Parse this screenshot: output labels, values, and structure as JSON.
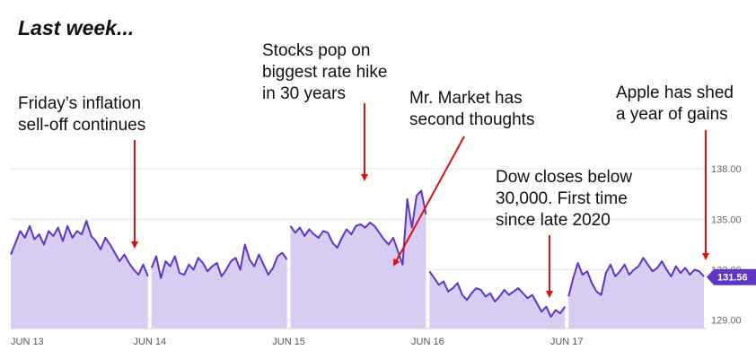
{
  "headline": "Last week...",
  "annotations": [
    {
      "text": "Friday’s inflation\nsell-off continues"
    },
    {
      "text": "Stocks pop on\nbiggest rate hike\nin 30 years"
    },
    {
      "text": "Mr. Market has\nsecond thoughts"
    },
    {
      "text": "Dow closes below\n30,000. First time\nsince late 2020"
    },
    {
      "text": "Apple has shed\na year of gains"
    }
  ],
  "colors": {
    "line": "#5f35c4",
    "fill": "#d8ccf2",
    "arrow": "#e01010",
    "price_badge": "#5f35c4",
    "grid": "#e6e6e6"
  },
  "chart_data": {
    "type": "area",
    "ylim": [
      128.5,
      139.5
    ],
    "yticks": [
      {
        "value": 138,
        "label": "138.00"
      },
      {
        "value": 135,
        "label": "135.00"
      },
      {
        "value": 132,
        "label": "132.00"
      },
      {
        "value": 129,
        "label": "129.00"
      }
    ],
    "xticks": [
      "JUN 13",
      "JUN 14",
      "JUN 15",
      "JUN 16",
      "JUN 17"
    ],
    "current_price": {
      "value": 131.56,
      "label": "131.56"
    },
    "series": [
      {
        "day": "JUN 13",
        "values": [
          132.9,
          133.6,
          134.3,
          133.9,
          134.6,
          133.8,
          134.1,
          133.5,
          134.3,
          134.0,
          134.5,
          133.7,
          134.6,
          133.9,
          134.3,
          134.1,
          134.9,
          134.0,
          133.7,
          133.2,
          133.9,
          133.5,
          133.0,
          132.5,
          132.9,
          132.4,
          132.0,
          131.7,
          132.3,
          131.6
        ]
      },
      {
        "day": "JUN 14",
        "values": [
          132.1,
          132.8,
          131.5,
          132.5,
          132.2,
          132.8,
          131.8,
          131.7,
          132.3,
          132.0,
          132.7,
          132.4,
          131.9,
          132.2,
          132.4,
          131.6,
          132.0,
          132.5,
          132.7,
          132.0,
          133.5,
          132.6,
          132.2,
          132.9,
          132.3,
          131.7,
          132.1,
          132.8,
          133.0,
          132.6
        ]
      },
      {
        "day": "JUN 15",
        "values": [
          134.6,
          134.2,
          134.5,
          134.0,
          134.4,
          134.1,
          133.9,
          134.3,
          134.2,
          133.6,
          133.3,
          133.9,
          134.4,
          134.1,
          134.6,
          134.7,
          134.5,
          134.8,
          134.6,
          134.2,
          133.8,
          133.5,
          133.9,
          133.1,
          132.3,
          136.2,
          134.5,
          136.4,
          136.7,
          135.3
        ]
      },
      {
        "day": "JUN 16",
        "values": [
          131.9,
          131.5,
          131.1,
          131.3,
          130.7,
          130.9,
          131.2,
          130.5,
          130.2,
          130.6,
          130.9,
          130.8,
          130.4,
          130.6,
          130.1,
          130.4,
          130.8,
          130.5,
          130.7,
          130.9,
          130.6,
          130.3,
          130.5,
          130.0,
          129.5,
          129.8,
          129.2,
          129.6,
          129.4,
          129.8
        ]
      },
      {
        "day": "JUN 17",
        "values": [
          130.4,
          131.5,
          132.4,
          131.7,
          131.9,
          131.2,
          130.7,
          130.5,
          131.8,
          132.3,
          131.6,
          131.9,
          132.3,
          131.7,
          132.0,
          132.2,
          132.7,
          132.3,
          131.9,
          132.1,
          132.5,
          132.0,
          131.6,
          132.2,
          131.8,
          132.1,
          131.7,
          132.0,
          131.9,
          131.6
        ]
      }
    ]
  }
}
